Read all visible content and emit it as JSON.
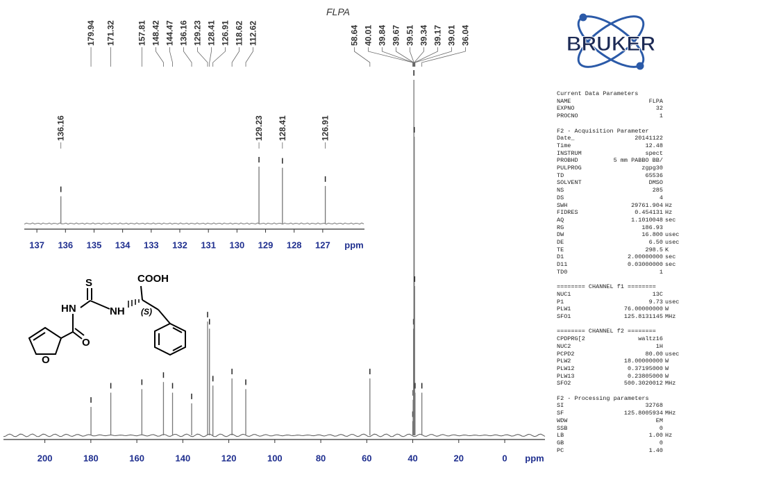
{
  "chart_data": [
    {
      "type": "spectrum",
      "title": "FLPA",
      "x_label": "ppm",
      "xlim": [
        218,
        -17.5
      ],
      "xticks": [
        200,
        180,
        160,
        140,
        120,
        100,
        80,
        60,
        40,
        20,
        0
      ],
      "peaks": [
        179.94,
        171.32,
        157.81,
        148.42,
        144.47,
        136.16,
        129.23,
        128.41,
        126.91,
        118.62,
        112.62,
        58.64,
        40.01,
        39.84,
        39.67,
        39.51,
        39.34,
        39.17,
        39.01,
        36.04
      ],
      "intensities": [
        8,
        12,
        13,
        15,
        12,
        9,
        32,
        30,
        14,
        16,
        13,
        16,
        4,
        10,
        30,
        100,
        84,
        42,
        12,
        12
      ]
    },
    {
      "type": "spectrum",
      "x_label": "ppm",
      "xlim": [
        137.44,
        125.54
      ],
      "xticks": [
        137,
        136,
        135,
        134,
        133,
        132,
        131,
        130,
        129,
        128,
        127
      ],
      "peaks": [
        136.16,
        129.23,
        128.41,
        126.91
      ],
      "intensities": [
        48,
        100,
        98,
        66
      ]
    }
  ],
  "structure": {
    "labels": [
      "COOH",
      "S",
      "HN",
      "NH",
      "(S)",
      "O",
      "O"
    ]
  },
  "logo": "BRUKER",
  "parameters": [
    {
      "title": "Current Data Parameters",
      "rows": [
        [
          "NAME",
          "FLPA"
        ],
        [
          "EXPNO",
          "32"
        ],
        [
          "PROCNO",
          "1"
        ]
      ]
    },
    {
      "title": "F2 - Acquisition Parameter",
      "rows": [
        [
          "Date_",
          "20141122"
        ],
        [
          "Time",
          "12.48"
        ],
        [
          "INSTRUM",
          "spect"
        ],
        [
          "PROBHD",
          "5 mm PABBO BB/"
        ],
        [
          "PULPROG",
          "zgpg30"
        ],
        [
          "TD",
          "65536"
        ],
        [
          "SOLVENT",
          "DMSO"
        ],
        [
          "NS",
          "285"
        ],
        [
          "DS",
          "4"
        ],
        [
          "SWH",
          "29761.904",
          "Hz"
        ],
        [
          "FIDRES",
          "0.454131",
          "Hz"
        ],
        [
          "AQ",
          "1.1010048",
          "sec"
        ],
        [
          "RG",
          "186.93"
        ],
        [
          "DW",
          "16.800",
          "usec"
        ],
        [
          "DE",
          "6.50",
          "usec"
        ],
        [
          "TE",
          "298.5",
          "K"
        ],
        [
          "D1",
          "2.00000000",
          "sec"
        ],
        [
          "D11",
          "0.03000000",
          "sec"
        ],
        [
          "TD0",
          "1"
        ]
      ]
    },
    {
      "title": "======== CHANNEL f1 ========",
      "rows": [
        [
          "NUC1",
          "13C"
        ],
        [
          "P1",
          "9.73",
          "usec"
        ],
        [
          "PLW1",
          "76.00000000",
          "W"
        ],
        [
          "SFO1",
          "125.8131145",
          "MHz"
        ]
      ]
    },
    {
      "title": "======== CHANNEL f2 ========",
      "rows": [
        [
          "CPDPRG[2",
          "waltz16"
        ],
        [
          "NUC2",
          "1H"
        ],
        [
          "PCPD2",
          "80.00",
          "usec"
        ],
        [
          "PLW2",
          "18.00000000",
          "W"
        ],
        [
          "PLW12",
          "0.37195000",
          "W"
        ],
        [
          "PLW13",
          "0.23805000",
          "W"
        ],
        [
          "SFO2",
          "500.3020012",
          "MHz"
        ]
      ]
    },
    {
      "title": "F2 - Processing parameters",
      "rows": [
        [
          "SI",
          "32768"
        ],
        [
          "SF",
          "125.8005934",
          "MHz"
        ],
        [
          "WDW",
          "EM"
        ],
        [
          "SSB",
          "0"
        ],
        [
          "LB",
          "1.00",
          "Hz"
        ],
        [
          "GB",
          "0"
        ],
        [
          "PC",
          "1.40"
        ]
      ]
    }
  ]
}
